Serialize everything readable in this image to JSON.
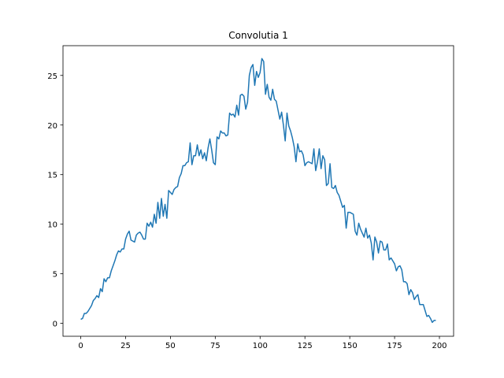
{
  "chart_data": {
    "type": "line",
    "title": "Convolutia 1",
    "x": [
      0,
      1,
      2,
      3,
      4,
      5,
      6,
      7,
      8,
      9,
      10,
      11,
      12,
      13,
      14,
      15,
      16,
      17,
      18,
      19,
      20,
      21,
      22,
      23,
      24,
      25,
      26,
      27,
      28,
      29,
      30,
      31,
      32,
      33,
      34,
      35,
      36,
      37,
      38,
      39,
      40,
      41,
      42,
      43,
      44,
      45,
      46,
      47,
      48,
      49,
      50,
      51,
      52,
      53,
      54,
      55,
      56,
      57,
      58,
      59,
      60,
      61,
      62,
      63,
      64,
      65,
      66,
      67,
      68,
      69,
      70,
      71,
      72,
      73,
      74,
      75,
      76,
      77,
      78,
      79,
      80,
      81,
      82,
      83,
      84,
      85,
      86,
      87,
      88,
      89,
      90,
      91,
      92,
      93,
      94,
      95,
      96,
      97,
      98,
      99,
      100,
      101,
      102,
      103,
      104,
      105,
      106,
      107,
      108,
      109,
      110,
      111,
      112,
      113,
      114,
      115,
      116,
      117,
      118,
      119,
      120,
      121,
      122,
      123,
      124,
      125,
      126,
      127,
      128,
      129,
      130,
      131,
      132,
      133,
      134,
      135,
      136,
      137,
      138,
      139,
      140,
      141,
      142,
      143,
      144,
      145,
      146,
      147,
      148,
      149,
      150,
      151,
      152,
      153,
      154,
      155,
      156,
      157,
      158,
      159,
      160,
      161,
      162,
      163,
      164,
      165,
      166,
      167,
      168,
      169,
      170,
      171,
      172,
      173,
      174,
      175,
      176,
      177,
      178,
      179,
      180,
      181,
      182,
      183,
      184,
      185,
      186,
      187,
      188,
      189,
      190,
      191,
      192,
      193,
      194,
      195,
      196,
      197,
      198
    ],
    "values": [
      0.4,
      0.5,
      1.0,
      1.0,
      1.2,
      1.5,
      1.8,
      2.3,
      2.5,
      2.8,
      2.6,
      3.5,
      3.2,
      4.5,
      4.2,
      4.6,
      4.6,
      5.3,
      5.8,
      6.3,
      6.9,
      7.3,
      7.2,
      7.5,
      7.5,
      8.5,
      9.0,
      9.3,
      8.4,
      8.3,
      8.2,
      8.9,
      9.1,
      9.2,
      8.9,
      8.5,
      8.5,
      10.1,
      9.8,
      10.2,
      9.7,
      11.0,
      10.1,
      12.2,
      10.6,
      12.6,
      10.8,
      12.0,
      10.6,
      13.4,
      13.2,
      13.0,
      13.5,
      13.7,
      13.8,
      14.7,
      15.1,
      15.9,
      15.9,
      16.2,
      16.3,
      18.2,
      16.0,
      16.9,
      16.9,
      18.0,
      16.9,
      17.5,
      16.6,
      17.2,
      16.4,
      17.7,
      18.6,
      17.5,
      16.2,
      16.0,
      18.8,
      18.6,
      19.4,
      19.2,
      19.2,
      18.9,
      19.0,
      21.2,
      21.0,
      21.1,
      20.8,
      22.0,
      21.0,
      23.0,
      23.1,
      22.9,
      21.6,
      22.3,
      25.0,
      25.8,
      26.1,
      24.0,
      25.4,
      24.8,
      25.3,
      26.7,
      26.4,
      23.1,
      24.1,
      22.8,
      22.5,
      23.6,
      22.6,
      22.4,
      21.5,
      20.6,
      21.3,
      20.0,
      18.4,
      21.2,
      19.9,
      19.4,
      18.7,
      17.8,
      16.3,
      18.1,
      17.3,
      17.4,
      17.0,
      15.9,
      16.2,
      16.3,
      16.2,
      16.1,
      17.6,
      15.4,
      16.3,
      17.6,
      15.6,
      16.9,
      16.5,
      13.9,
      14.1,
      16.1,
      13.7,
      13.6,
      13.9,
      13.2,
      12.9,
      12.3,
      11.7,
      11.9,
      9.6,
      11.2,
      11.2,
      11.1,
      11.0,
      9.3,
      8.9,
      10.1,
      9.5,
      9.1,
      8.7,
      9.6,
      8.6,
      8.9,
      8.1,
      6.4,
      8.7,
      8.2,
      7.1,
      8.3,
      8.2,
      7.4,
      7.4,
      8.0,
      6.4,
      6.6,
      6.3,
      6.0,
      5.3,
      5.7,
      5.8,
      5.4,
      4.2,
      4.2,
      4.0,
      2.9,
      3.4,
      3.1,
      2.4,
      2.7,
      2.9,
      1.9,
      1.9,
      1.9,
      1.3,
      0.7,
      0.8,
      0.5,
      0.1,
      0.3,
      0.3
    ],
    "color": "#1f77b4",
    "xlim": [
      -9.9,
      207.9
    ],
    "xticks": [
      0,
      25,
      50,
      75,
      100,
      125,
      150,
      175,
      200
    ],
    "ylim": [
      -1.3,
      28.0
    ],
    "yticks": [
      0,
      5,
      10,
      15,
      20,
      25
    ]
  }
}
